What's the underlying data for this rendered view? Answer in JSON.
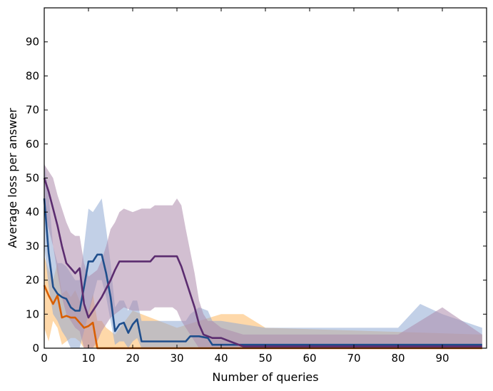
{
  "chart_data": {
    "type": "line",
    "title": "",
    "xlabel": "Number of queries",
    "ylabel": "Average loss per answer",
    "xlim": [
      0,
      100
    ],
    "ylim": [
      0,
      100
    ],
    "xticks": [
      0,
      10,
      20,
      30,
      40,
      50,
      60,
      70,
      80,
      90
    ],
    "yticks": [
      0,
      10,
      20,
      30,
      40,
      50,
      60,
      70,
      80,
      90
    ],
    "grid": false,
    "legend": "none",
    "series": [
      {
        "color": "#d95f02",
        "band_color": "#fdb863",
        "x": [
          0,
          1,
          2,
          3,
          4,
          5,
          6,
          7,
          8,
          9,
          10,
          11,
          12,
          13,
          14,
          16,
          20,
          30,
          40,
          45,
          50,
          99
        ],
        "y": [
          18.5,
          15.5,
          13,
          15.5,
          9,
          9.5,
          9,
          9,
          7.5,
          6,
          6.5,
          7.5,
          0,
          0,
          0,
          0,
          0,
          0,
          0,
          0,
          0,
          0
        ],
        "lower": [
          6,
          2,
          8,
          6,
          1,
          2,
          3,
          3,
          2,
          0,
          0,
          0,
          0,
          0,
          0,
          0,
          0,
          0,
          0,
          0,
          0,
          0
        ],
        "upper": [
          27,
          23,
          20,
          25,
          16,
          17,
          15,
          17,
          14,
          12,
          11,
          16,
          8,
          8,
          6,
          4,
          11,
          6,
          10,
          10,
          6,
          4
        ]
      },
      {
        "color": "#1f4e8c",
        "band_color": "#8faad4",
        "x": [
          0,
          1,
          2,
          3,
          4,
          5,
          6,
          7,
          8,
          9,
          10,
          11,
          12,
          13,
          14,
          15,
          16,
          17,
          18,
          19,
          20,
          21,
          22,
          23,
          25,
          30,
          32,
          33,
          35,
          37,
          38,
          40,
          45,
          50,
          60,
          70,
          80,
          85,
          90,
          99
        ],
        "y": [
          44,
          28,
          18,
          16,
          15,
          14.5,
          12,
          11,
          11,
          18,
          25.5,
          25.5,
          27.5,
          27.5,
          22,
          15,
          5,
          7,
          7.5,
          4.5,
          7,
          8.5,
          2,
          2,
          2,
          2,
          2,
          3.5,
          3.5,
          3,
          1,
          1,
          1,
          1,
          1,
          1,
          1,
          1,
          1,
          1
        ],
        "lower": [
          30,
          18,
          10,
          8,
          5,
          3,
          0,
          0,
          0,
          5,
          10,
          15,
          20,
          20,
          15,
          8,
          1,
          2,
          2,
          0,
          2,
          3,
          0,
          0,
          0,
          0,
          0,
          0,
          0,
          0,
          0,
          0,
          0,
          0,
          0,
          0,
          0,
          0,
          0,
          0
        ],
        "upper": [
          55,
          45,
          30,
          25,
          25,
          24,
          22,
          20,
          20,
          30,
          41,
          40,
          42,
          44,
          35,
          25,
          12,
          14,
          14,
          11,
          14,
          14,
          8,
          8,
          8,
          8,
          8,
          10,
          12,
          11,
          8,
          8,
          7,
          6,
          6,
          6,
          6,
          13,
          10,
          6
        ]
      },
      {
        "color": "#5b2c6f",
        "band_color": "#ad8aac",
        "x": [
          0,
          1,
          2,
          3,
          4,
          5,
          6,
          7,
          8,
          9,
          10,
          11,
          12,
          13,
          14,
          15,
          16,
          17,
          18,
          20,
          22,
          24,
          25,
          27,
          29,
          30,
          31,
          32,
          34,
          35,
          36,
          37,
          38,
          40,
          45,
          50,
          60,
          70,
          80,
          90,
          99
        ],
        "y": [
          50,
          46,
          41,
          36,
          30,
          25,
          23.5,
          22,
          23.5,
          13,
          9,
          11,
          13,
          15,
          17.5,
          20,
          23,
          25.5,
          25.5,
          25.5,
          25.5,
          25.5,
          27,
          27,
          27,
          27,
          24,
          20,
          12,
          7,
          4,
          3.5,
          3,
          3,
          0.5,
          0.5,
          0.5,
          0.5,
          0.5,
          0.5,
          0.5
        ],
        "lower": [
          40,
          35,
          30,
          22,
          15,
          10,
          8,
          6,
          5,
          0,
          0,
          0,
          2,
          5,
          7,
          9,
          10,
          11,
          12,
          11,
          11,
          11,
          12,
          12,
          12,
          11,
          8,
          6,
          2,
          0,
          0,
          0,
          0,
          0,
          0,
          0,
          0,
          0,
          0,
          0,
          0
        ],
        "upper": [
          54,
          52,
          50,
          45,
          41,
          37,
          34,
          33,
          33,
          25,
          21,
          22,
          23,
          26,
          30,
          35,
          37,
          40,
          41,
          40,
          41,
          41,
          42,
          42,
          42,
          44,
          42,
          35,
          22,
          14,
          10,
          8,
          8,
          6,
          4,
          4,
          4,
          4,
          4,
          12,
          4
        ]
      }
    ]
  }
}
